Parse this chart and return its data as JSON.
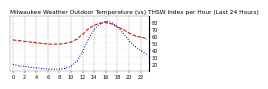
{
  "title": "Milwaukee Weather Outdoor Temperature (vs) THSW Index per Hour (Last 24 Hours)",
  "red_y": [
    55,
    54,
    53,
    52,
    51,
    50,
    49,
    49,
    49,
    50,
    52,
    56,
    63,
    71,
    76,
    79,
    80,
    78,
    74,
    70,
    65,
    61,
    59,
    57
  ],
  "blue_y": [
    20,
    18,
    17,
    16,
    15,
    14,
    13,
    13,
    13,
    14,
    17,
    24,
    38,
    56,
    70,
    78,
    82,
    80,
    74,
    65,
    54,
    46,
    40,
    35
  ],
  "x": [
    0,
    1,
    2,
    3,
    4,
    5,
    6,
    7,
    8,
    9,
    10,
    11,
    12,
    13,
    14,
    15,
    16,
    17,
    18,
    19,
    20,
    21,
    22,
    23
  ],
  "ylim": [
    10,
    90
  ],
  "yticks": [
    20,
    30,
    40,
    50,
    60,
    70,
    80
  ],
  "xlim": [
    -0.5,
    23.5
  ],
  "bg_color": "#ffffff",
  "plot_bg_color": "#ffffff",
  "red_color": "#cc0000",
  "blue_color": "#0000bb",
  "title_fontsize": 4.2,
  "tick_fontsize": 3.5,
  "grid_color": "#999999"
}
